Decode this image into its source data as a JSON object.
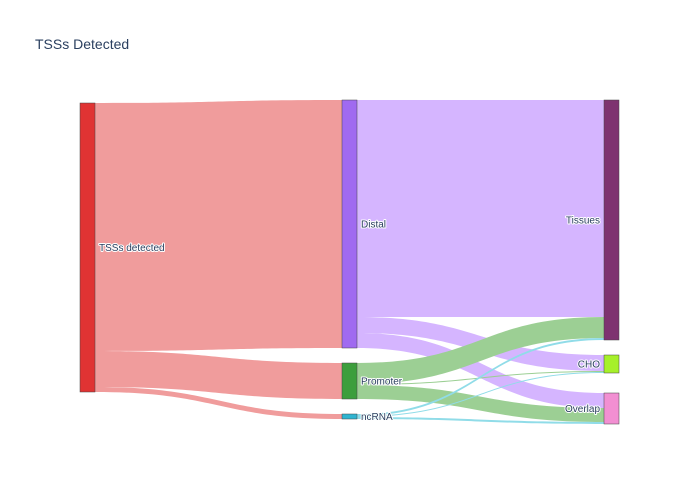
{
  "chart_data": {
    "type": "sankey",
    "title": "TSSs Detected",
    "nodes": [
      {
        "id": "tss",
        "label": "TSSs detected",
        "color": "#e03333",
        "column": 0
      },
      {
        "id": "distal",
        "label": "Distal",
        "color": "#a06af0",
        "column": 1
      },
      {
        "id": "promoter",
        "label": "Promoter",
        "color": "#3c9e3c",
        "column": 1
      },
      {
        "id": "ncrna",
        "label": "ncRNA",
        "color": "#2fb4d0",
        "column": 1
      },
      {
        "id": "tissues",
        "label": "Tissues",
        "color": "#7e3370",
        "column": 2
      },
      {
        "id": "cho",
        "label": "CHO",
        "color": "#a6f02a",
        "column": 2
      },
      {
        "id": "overlap",
        "label": "Overlap",
        "color": "#f28fd2",
        "column": 2
      }
    ],
    "links": [
      {
        "source": "tss",
        "target": "distal",
        "value": 248,
        "color": "#f09c9c"
      },
      {
        "source": "tss",
        "target": "promoter",
        "value": 36,
        "color": "#f09c9c"
      },
      {
        "source": "tss",
        "target": "ncrna",
        "value": 5,
        "color": "#f09c9c"
      },
      {
        "source": "distal",
        "target": "tissues",
        "value": 217,
        "color": "#d5b5ff"
      },
      {
        "source": "distal",
        "target": "cho",
        "value": 16,
        "color": "#d5b5ff"
      },
      {
        "source": "distal",
        "target": "overlap",
        "value": 15,
        "color": "#d5b5ff"
      },
      {
        "source": "promoter",
        "target": "tissues",
        "value": 21,
        "color": "#9ccf94"
      },
      {
        "source": "promoter",
        "target": "cho",
        "value": 1,
        "color": "#9ccf94"
      },
      {
        "source": "promoter",
        "target": "overlap",
        "value": 14,
        "color": "#9ccf94"
      },
      {
        "source": "ncrna",
        "target": "tissues",
        "value": 2,
        "color": "#90dce8"
      },
      {
        "source": "ncrna",
        "target": "cho",
        "value": 1,
        "color": "#90dce8"
      },
      {
        "source": "ncrna",
        "target": "overlap",
        "value": 2,
        "color": "#90dce8"
      }
    ]
  }
}
